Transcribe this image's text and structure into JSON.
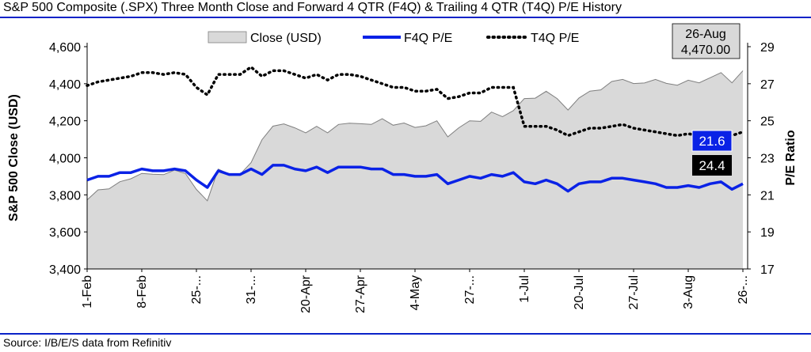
{
  "header": {
    "title": "S&P 500 Composite (.SPX) Three Month Close and Forward 4 QTR (F4Q) & Trailing 4 QTR (T4Q) P/E History"
  },
  "footer": {
    "source": "Source: I/B/E/S data from Refinitiv"
  },
  "colors": {
    "close_fill": "#d9d9d9",
    "close_outline": "#7f7f7f",
    "f4q_line": "#0a22e6",
    "t4q_line": "#000000",
    "rule": "#0a22c8",
    "f4q_label_bg": "#0a22e6",
    "t4q_label_bg": "#000000",
    "latest_box_bg": "#d9d9d9"
  },
  "chart_data": {
    "type": "line",
    "title": "S&P 500 Composite (.SPX) Three Month Close and Forward 4 QTR (F4Q) & Trailing 4 QTR (T4Q) P/E History",
    "ylabel": "S&P 500 Close (USD)",
    "y2label": "P/E Ratio",
    "ylim": [
      3400,
      4600
    ],
    "y2lim": [
      17,
      29
    ],
    "yticks": [
      "3,400",
      "3,600",
      "3,800",
      "4,000",
      "4,200",
      "4,400",
      "4,600"
    ],
    "y2ticks": [
      "17",
      "19",
      "21",
      "23",
      "25",
      "27",
      "29"
    ],
    "x_tick_labels": [
      "1-Feb",
      "8-Feb",
      "25-...",
      "31-...",
      "20-Apr",
      "27-Apr",
      "4-May",
      "27-...",
      "1-Jul",
      "20-Jul",
      "27-Jul",
      "3-Aug",
      "26-..."
    ],
    "legend": [
      "Close (USD)",
      "F4Q P/E",
      "T4Q P/E"
    ],
    "legend_position": "top",
    "series": [
      {
        "name": "Close (USD)",
        "type": "area",
        "axis": "left",
        "values": [
          3773,
          3827,
          3832,
          3871,
          3887,
          3916,
          3911,
          3909,
          3934,
          3915,
          3829,
          3768,
          3939,
          3913,
          3911,
          3974,
          4098,
          4171,
          4183,
          4162,
          4135,
          4170,
          4135,
          4180,
          4187,
          4184,
          4180,
          4211,
          4176,
          4188,
          4164,
          4173,
          4200,
          4113,
          4162,
          4200,
          4197,
          4247,
          4222,
          4255,
          4320,
          4322,
          4359,
          4320,
          4258,
          4323,
          4360,
          4367,
          4412,
          4423,
          4401,
          4404,
          4423,
          4402,
          4392,
          4419,
          4405,
          4432,
          4460,
          4405,
          4470
        ]
      },
      {
        "name": "F4Q P/E",
        "type": "line",
        "axis": "right",
        "values": [
          21.8,
          22.0,
          22.0,
          22.2,
          22.2,
          22.4,
          22.3,
          22.3,
          22.4,
          22.3,
          21.8,
          21.4,
          22.3,
          22.1,
          22.1,
          22.4,
          22.1,
          22.6,
          22.6,
          22.4,
          22.3,
          22.5,
          22.2,
          22.5,
          22.5,
          22.5,
          22.4,
          22.4,
          22.1,
          22.1,
          22.0,
          22.0,
          22.1,
          21.6,
          21.8,
          22.0,
          21.9,
          22.1,
          22.0,
          22.2,
          21.7,
          21.6,
          21.8,
          21.6,
          21.2,
          21.6,
          21.7,
          21.7,
          21.9,
          21.9,
          21.8,
          21.7,
          21.6,
          21.4,
          21.4,
          21.5,
          21.4,
          21.6,
          21.7,
          21.3,
          21.6
        ]
      },
      {
        "name": "T4Q P/E",
        "type": "line",
        "axis": "right",
        "values": [
          26.9,
          27.1,
          27.2,
          27.3,
          27.4,
          27.6,
          27.6,
          27.5,
          27.6,
          27.5,
          26.8,
          26.4,
          27.5,
          27.5,
          27.5,
          27.9,
          27.4,
          27.7,
          27.7,
          27.5,
          27.3,
          27.5,
          27.2,
          27.5,
          27.5,
          27.4,
          27.2,
          27.0,
          26.8,
          26.8,
          26.6,
          26.6,
          26.7,
          26.2,
          26.3,
          26.5,
          26.5,
          26.8,
          26.8,
          26.8,
          24.7,
          24.7,
          24.7,
          24.5,
          24.2,
          24.4,
          24.6,
          24.6,
          24.7,
          24.8,
          24.6,
          24.5,
          24.4,
          24.3,
          24.2,
          24.3,
          24.2,
          24.3,
          24.4,
          24.2,
          24.4
        ]
      }
    ],
    "annotations": {
      "latest_date": "26-Aug",
      "latest_close": "4,470.00",
      "f4q_latest": "21.6",
      "t4q_latest": "24.4"
    }
  }
}
